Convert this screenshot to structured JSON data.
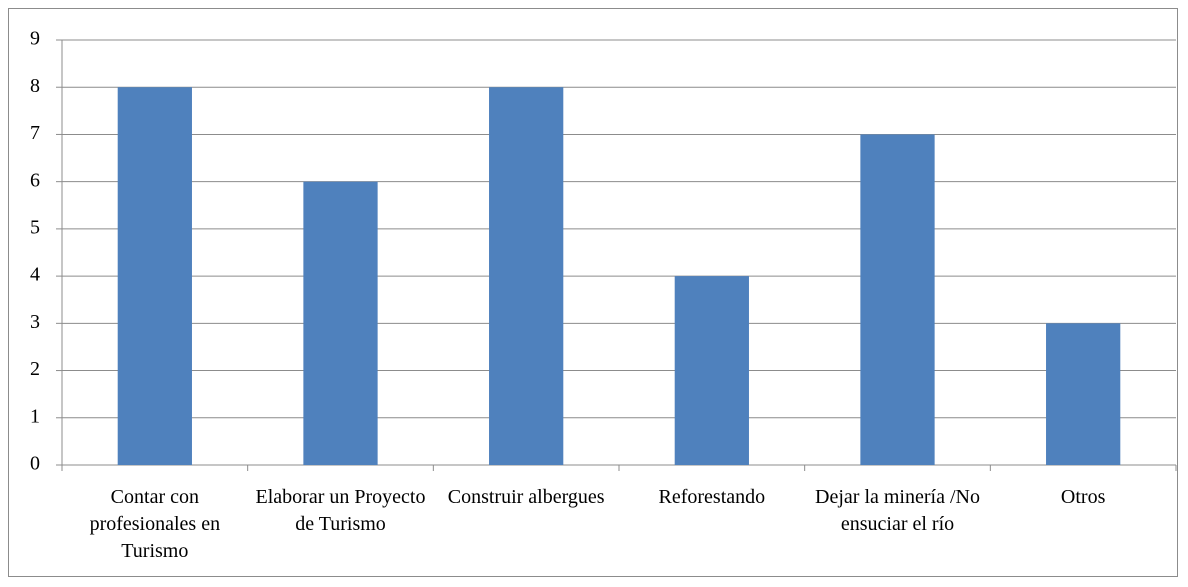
{
  "chart_data": {
    "type": "bar",
    "categories": [
      "Contar con profesionales en Turismo",
      "Elaborar un Proyecto de Turismo",
      "Construir albergues",
      "Reforestando",
      "Dejar la minería /No ensuciar el río",
      "Otros"
    ],
    "values": [
      8,
      6,
      8,
      4,
      7,
      3
    ],
    "color": "#4f81bd",
    "ylim": [
      0,
      9
    ],
    "yticks": [
      0,
      1,
      2,
      3,
      4,
      5,
      6,
      7,
      8,
      9
    ],
    "grid": true
  }
}
